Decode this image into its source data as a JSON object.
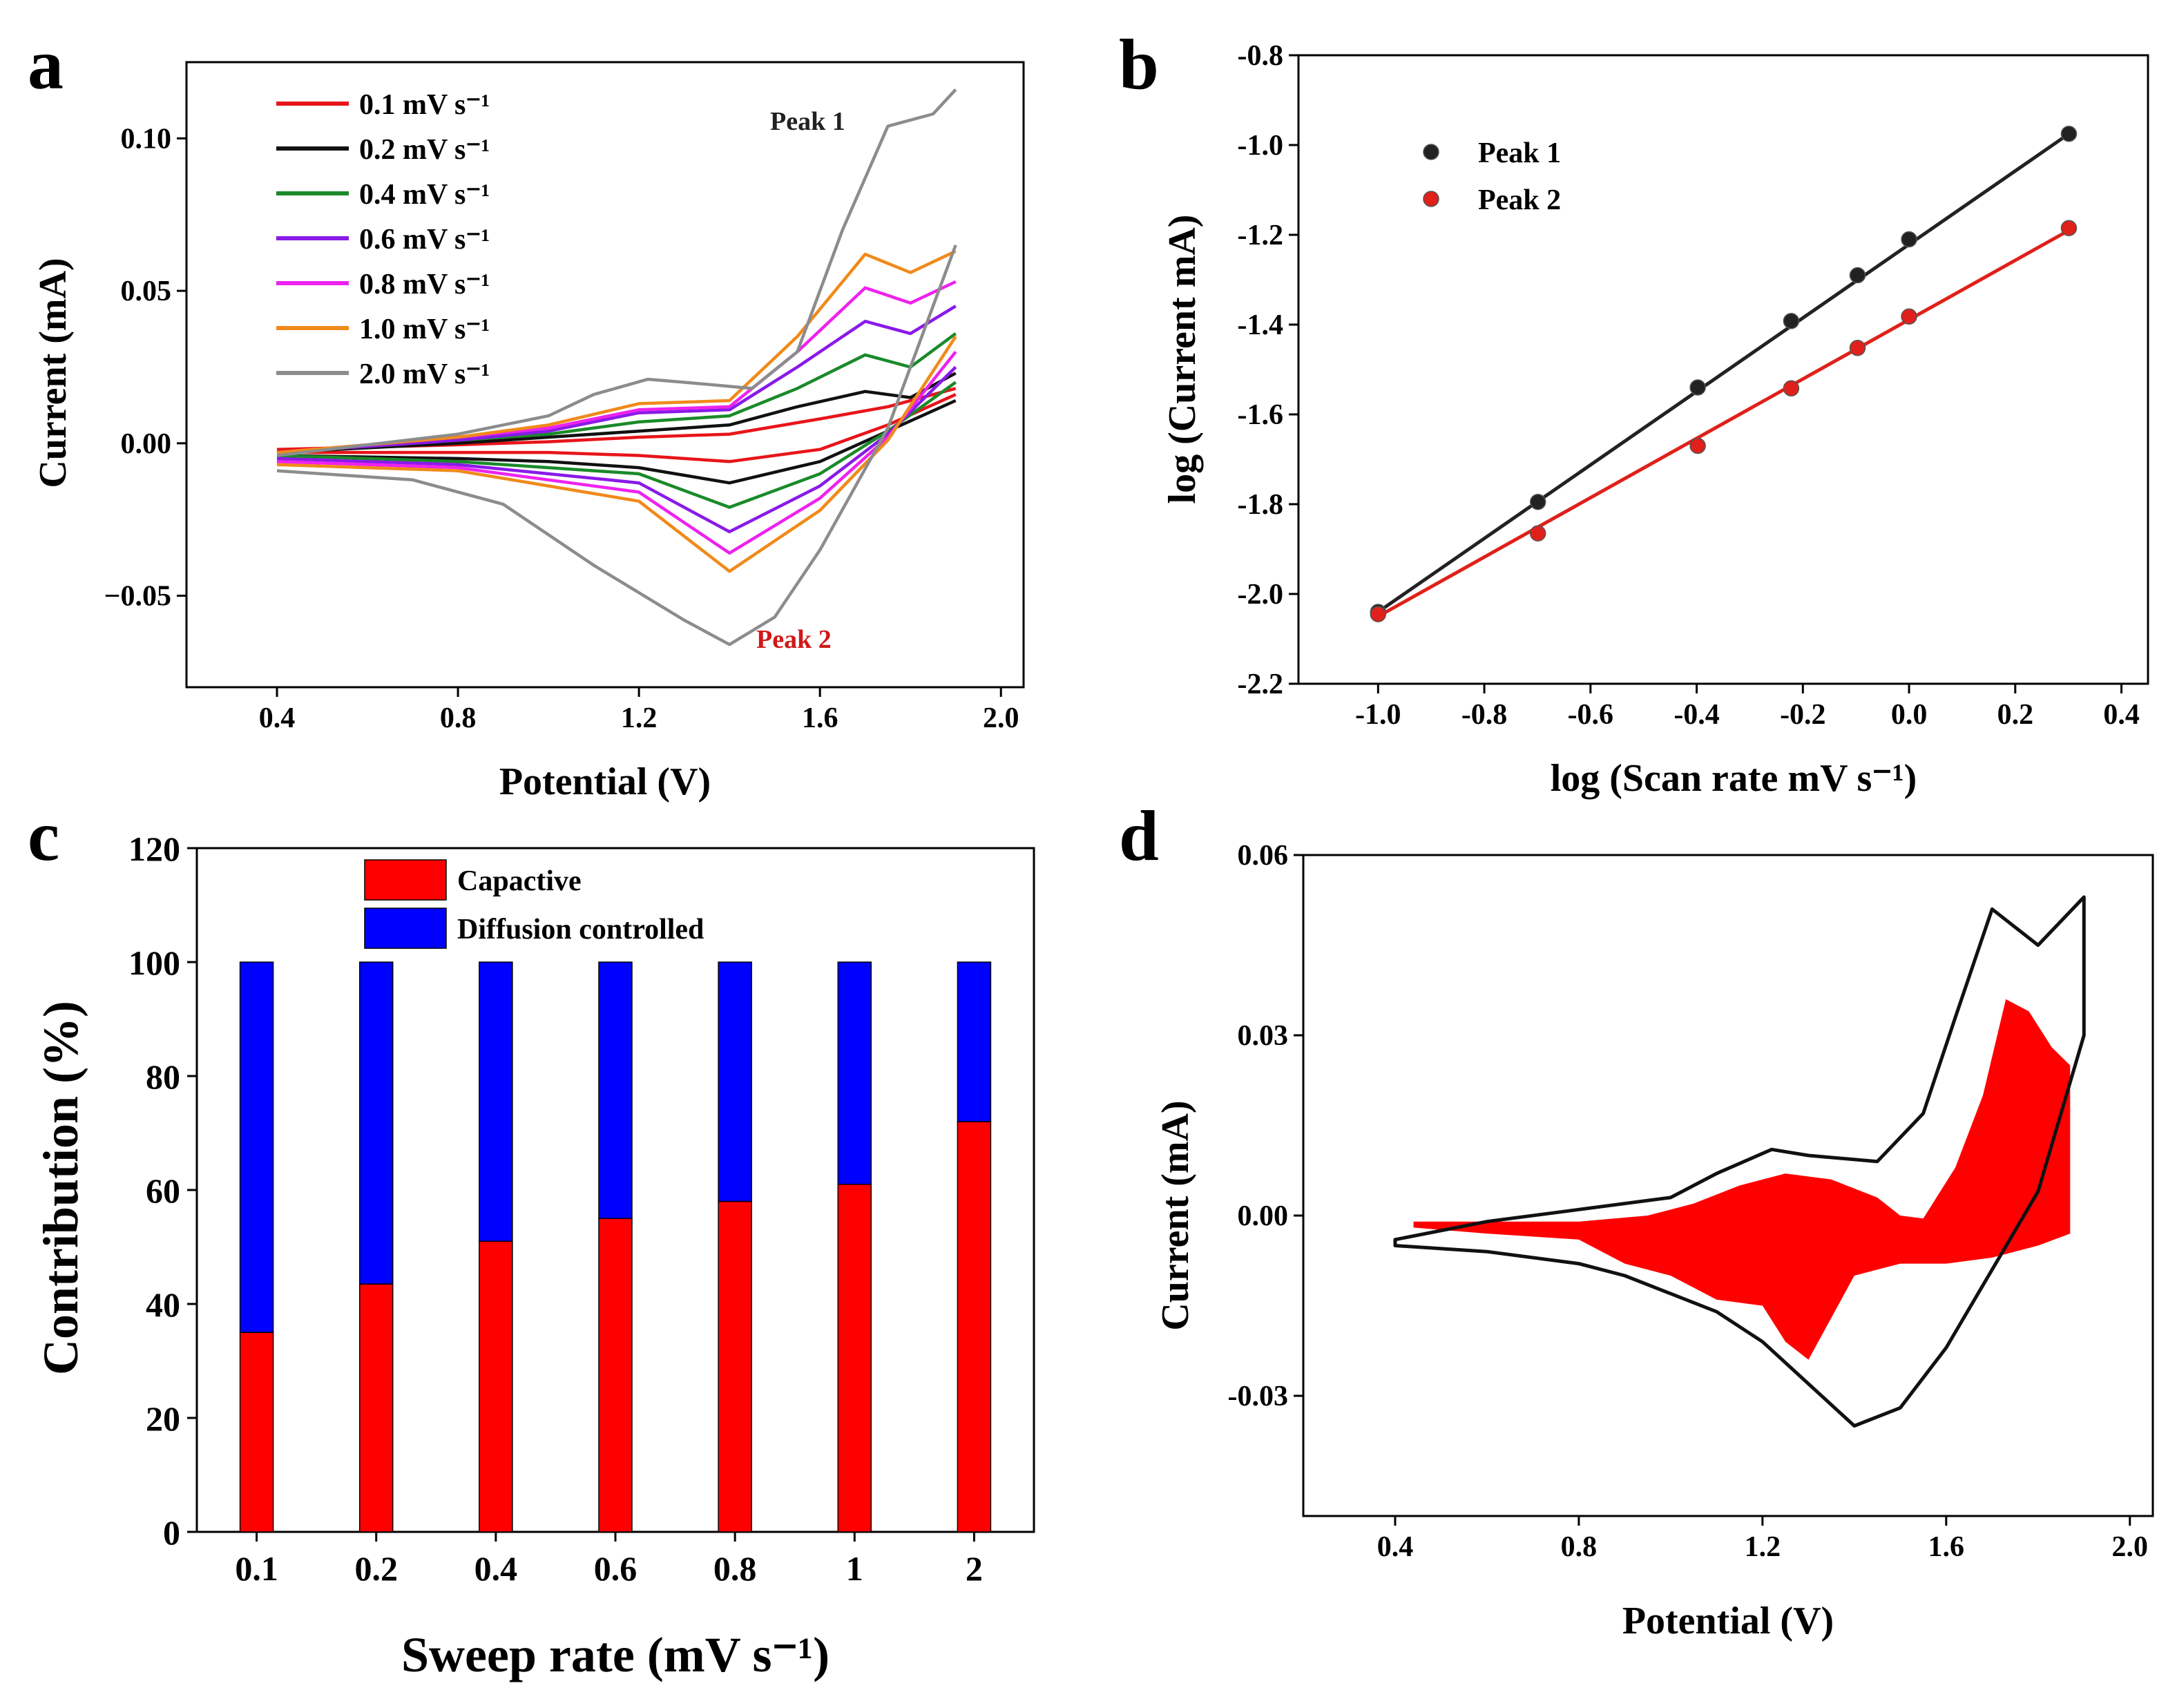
{
  "chart_data": [
    {
      "panel": "a",
      "type": "line",
      "xlabel": "Potential (V)",
      "ylabel": "Current (mA)",
      "xlim": [
        0.2,
        2.05
      ],
      "ylim": [
        -0.08,
        0.125
      ],
      "xticks": [
        "0.4",
        "0.8",
        "1.2",
        "1.6",
        "2.0"
      ],
      "yticks": [
        "−0.05",
        "0.00",
        "0.05",
        "0.10"
      ],
      "series": [
        {
          "name": "0.1 mV s⁻¹",
          "color": "#e8141a",
          "anodic": [
            [
              0.4,
              -0.002
            ],
            [
              0.8,
              -0.0005
            ],
            [
              1.0,
              0.0005
            ],
            [
              1.2,
              0.002
            ],
            [
              1.4,
              0.003
            ],
            [
              1.6,
              0.008
            ],
            [
              1.75,
              0.012
            ],
            [
              1.9,
              0.018
            ]
          ],
          "cathodic": [
            [
              1.9,
              0.016
            ],
            [
              1.75,
              0.006
            ],
            [
              1.6,
              -0.002
            ],
            [
              1.4,
              -0.006
            ],
            [
              1.2,
              -0.004
            ],
            [
              1.0,
              -0.003
            ],
            [
              0.8,
              -0.003
            ],
            [
              0.4,
              -0.003
            ]
          ]
        },
        {
          "name": "0.2 mV s⁻¹",
          "color": "#111111",
          "anodic": [
            [
              0.4,
              -0.003
            ],
            [
              0.8,
              0.0
            ],
            [
              1.0,
              0.002
            ],
            [
              1.2,
              0.004
            ],
            [
              1.4,
              0.006
            ],
            [
              1.55,
              0.012
            ],
            [
              1.7,
              0.017
            ],
            [
              1.8,
              0.015
            ],
            [
              1.9,
              0.023
            ]
          ],
          "cathodic": [
            [
              1.9,
              0.014
            ],
            [
              1.75,
              0.004
            ],
            [
              1.6,
              -0.006
            ],
            [
              1.4,
              -0.013
            ],
            [
              1.2,
              -0.008
            ],
            [
              1.0,
              -0.006
            ],
            [
              0.8,
              -0.005
            ],
            [
              0.4,
              -0.004
            ]
          ]
        },
        {
          "name": "0.4 mV s⁻¹",
          "color": "#1a8a2a",
          "anodic": [
            [
              0.4,
              -0.003
            ],
            [
              0.8,
              0.001
            ],
            [
              1.0,
              0.003
            ],
            [
              1.2,
              0.007
            ],
            [
              1.4,
              0.009
            ],
            [
              1.55,
              0.018
            ],
            [
              1.7,
              0.029
            ],
            [
              1.8,
              0.025
            ],
            [
              1.9,
              0.036
            ]
          ],
          "cathodic": [
            [
              1.9,
              0.02
            ],
            [
              1.75,
              0.004
            ],
            [
              1.6,
              -0.01
            ],
            [
              1.4,
              -0.021
            ],
            [
              1.2,
              -0.01
            ],
            [
              1.0,
              -0.008
            ],
            [
              0.8,
              -0.006
            ],
            [
              0.4,
              -0.004
            ]
          ]
        },
        {
          "name": "0.6 mV s⁻¹",
          "color": "#8a1ae8",
          "anodic": [
            [
              0.4,
              -0.003
            ],
            [
              0.8,
              0.001
            ],
            [
              1.0,
              0.004
            ],
            [
              1.2,
              0.01
            ],
            [
              1.4,
              0.011
            ],
            [
              1.55,
              0.025
            ],
            [
              1.7,
              0.04
            ],
            [
              1.8,
              0.036
            ],
            [
              1.9,
              0.045
            ]
          ],
          "cathodic": [
            [
              1.9,
              0.025
            ],
            [
              1.75,
              0.003
            ],
            [
              1.6,
              -0.014
            ],
            [
              1.4,
              -0.029
            ],
            [
              1.2,
              -0.013
            ],
            [
              1.0,
              -0.01
            ],
            [
              0.8,
              -0.007
            ],
            [
              0.4,
              -0.005
            ]
          ]
        },
        {
          "name": "0.8 mV s⁻¹",
          "color": "#ee22ee",
          "anodic": [
            [
              0.4,
              -0.003
            ],
            [
              0.8,
              0.002
            ],
            [
              1.0,
              0.005
            ],
            [
              1.2,
              0.011
            ],
            [
              1.4,
              0.012
            ],
            [
              1.55,
              0.03
            ],
            [
              1.7,
              0.051
            ],
            [
              1.8,
              0.046
            ],
            [
              1.9,
              0.053
            ]
          ],
          "cathodic": [
            [
              1.9,
              0.03
            ],
            [
              1.75,
              0.002
            ],
            [
              1.6,
              -0.018
            ],
            [
              1.4,
              -0.036
            ],
            [
              1.2,
              -0.016
            ],
            [
              1.0,
              -0.012
            ],
            [
              0.8,
              -0.008
            ],
            [
              0.4,
              -0.006
            ]
          ]
        },
        {
          "name": "1.0 mV s⁻¹",
          "color": "#f08a1a",
          "anodic": [
            [
              0.4,
              -0.003
            ],
            [
              0.8,
              0.002
            ],
            [
              1.0,
              0.006
            ],
            [
              1.2,
              0.013
            ],
            [
              1.4,
              0.014
            ],
            [
              1.55,
              0.035
            ],
            [
              1.7,
              0.062
            ],
            [
              1.8,
              0.056
            ],
            [
              1.9,
              0.063
            ]
          ],
          "cathodic": [
            [
              1.9,
              0.035
            ],
            [
              1.75,
              0.001
            ],
            [
              1.6,
              -0.022
            ],
            [
              1.4,
              -0.042
            ],
            [
              1.2,
              -0.019
            ],
            [
              1.0,
              -0.014
            ],
            [
              0.8,
              -0.009
            ],
            [
              0.4,
              -0.007
            ]
          ]
        },
        {
          "name": "2.0 mV s⁻¹",
          "color": "#8c8c8c",
          "anodic": [
            [
              0.4,
              -0.004
            ],
            [
              0.8,
              0.003
            ],
            [
              1.0,
              0.009
            ],
            [
              1.1,
              0.016
            ],
            [
              1.22,
              0.021
            ],
            [
              1.3,
              0.02
            ],
            [
              1.45,
              0.018
            ],
            [
              1.55,
              0.03
            ],
            [
              1.65,
              0.07
            ],
            [
              1.75,
              0.104
            ],
            [
              1.85,
              0.108
            ],
            [
              1.9,
              0.116
            ]
          ],
          "cathodic": [
            [
              1.9,
              0.065
            ],
            [
              1.8,
              0.025
            ],
            [
              1.75,
              0.005
            ],
            [
              1.6,
              -0.035
            ],
            [
              1.5,
              -0.057
            ],
            [
              1.4,
              -0.066
            ],
            [
              1.3,
              -0.058
            ],
            [
              1.1,
              -0.04
            ],
            [
              1.0,
              -0.03
            ],
            [
              0.9,
              -0.02
            ],
            [
              0.7,
              -0.012
            ],
            [
              0.4,
              -0.009
            ]
          ]
        }
      ],
      "annotations": [
        "Peak 1",
        "Peak 2"
      ]
    },
    {
      "panel": "b",
      "type": "scatter",
      "xlabel": "log (Scan rate mV s⁻¹)",
      "ylabel": "log (Current mA)",
      "xlim": [
        -1.15,
        0.45
      ],
      "ylim": [
        -2.2,
        -0.8
      ],
      "xticks": [
        "-1.0",
        "-0.8",
        "-0.6",
        "-0.4",
        "-0.2",
        "0.0",
        "0.2",
        "0.4"
      ],
      "yticks": [
        "-2.2",
        "-2.0",
        "-1.8",
        "-1.6",
        "-1.4",
        "-1.2",
        "-1.0",
        "-0.8"
      ],
      "x": [
        -1.0,
        -0.699,
        -0.398,
        -0.222,
        -0.097,
        0.0,
        0.301
      ],
      "series": [
        {
          "name": "Peak 1",
          "color": "#222222",
          "values": [
            -2.04,
            -1.795,
            -1.54,
            -1.392,
            -1.29,
            -1.21,
            -0.975
          ],
          "fit": [
            [
              -1.0,
              -2.04
            ],
            [
              0.301,
              -0.975
            ]
          ]
        },
        {
          "name": "Peak 2",
          "color": "#e0201a",
          "values": [
            -2.045,
            -1.865,
            -1.67,
            -1.542,
            -1.452,
            -1.382,
            -1.185
          ],
          "fit": [
            [
              -1.0,
              -2.05
            ],
            [
              0.301,
              -1.19
            ]
          ]
        }
      ]
    },
    {
      "panel": "c",
      "type": "bar",
      "xlabel": "Sweep rate (mV s⁻¹)",
      "ylabel": "Contribution (%)",
      "ylim": [
        0,
        120
      ],
      "yticks": [
        "0",
        "20",
        "40",
        "60",
        "80",
        "100",
        "120"
      ],
      "categories": [
        "0.1",
        "0.2",
        "0.4",
        "0.6",
        "0.8",
        "1",
        "2"
      ],
      "series": [
        {
          "name": "Capactive",
          "color": "#ff0000",
          "values": [
            35,
            43.5,
            51,
            55,
            58,
            61,
            72
          ]
        },
        {
          "name": "Diffusion controlled",
          "color": "#0000ff",
          "values": [
            65,
            56.5,
            49,
            45,
            42,
            39,
            28
          ]
        }
      ]
    },
    {
      "panel": "d",
      "type": "area",
      "xlabel": "Potential (V)",
      "ylabel": "Current (mA)",
      "xlim": [
        0.2,
        2.05
      ],
      "ylim": [
        -0.05,
        0.06
      ],
      "xticks": [
        "0.4",
        "0.8",
        "1.2",
        "1.6",
        "2.0"
      ],
      "yticks": [
        "-0.03",
        "0.00",
        "0.03",
        "0.06"
      ],
      "total_cv": {
        "anodic": [
          [
            0.4,
            -0.004
          ],
          [
            0.6,
            -0.001
          ],
          [
            0.8,
            0.001
          ],
          [
            1.0,
            0.003
          ],
          [
            1.1,
            0.007
          ],
          [
            1.22,
            0.011
          ],
          [
            1.3,
            0.01
          ],
          [
            1.45,
            0.009
          ],
          [
            1.55,
            0.017
          ],
          [
            1.62,
            0.033
          ],
          [
            1.7,
            0.051
          ],
          [
            1.8,
            0.045
          ],
          [
            1.9,
            0.053
          ]
        ],
        "cathodic": [
          [
            1.9,
            0.03
          ],
          [
            1.8,
            0.004
          ],
          [
            1.7,
            -0.009
          ],
          [
            1.6,
            -0.022
          ],
          [
            1.5,
            -0.032
          ],
          [
            1.4,
            -0.035
          ],
          [
            1.3,
            -0.028
          ],
          [
            1.2,
            -0.021
          ],
          [
            1.1,
            -0.016
          ],
          [
            1.0,
            -0.013
          ],
          [
            0.9,
            -0.01
          ],
          [
            0.8,
            -0.008
          ],
          [
            0.6,
            -0.006
          ],
          [
            0.4,
            -0.005
          ]
        ]
      },
      "capacitive_region": {
        "upper": [
          [
            0.44,
            -0.001
          ],
          [
            0.6,
            -0.001
          ],
          [
            0.8,
            -0.001
          ],
          [
            0.95,
            0.0
          ],
          [
            1.05,
            0.002
          ],
          [
            1.15,
            0.005
          ],
          [
            1.25,
            0.007
          ],
          [
            1.35,
            0.006
          ],
          [
            1.45,
            0.003
          ],
          [
            1.5,
            0.0
          ],
          [
            1.55,
            -0.0005
          ],
          [
            1.62,
            0.008
          ],
          [
            1.68,
            0.02
          ],
          [
            1.73,
            0.036
          ],
          [
            1.78,
            0.034
          ],
          [
            1.83,
            0.028
          ],
          [
            1.87,
            0.025
          ]
        ],
        "lower": [
          [
            1.87,
            -0.003
          ],
          [
            1.8,
            -0.005
          ],
          [
            1.7,
            -0.007
          ],
          [
            1.6,
            -0.008
          ],
          [
            1.5,
            -0.008
          ],
          [
            1.45,
            -0.009
          ],
          [
            1.4,
            -0.01
          ],
          [
            1.35,
            -0.017
          ],
          [
            1.3,
            -0.024
          ],
          [
            1.25,
            -0.021
          ],
          [
            1.2,
            -0.015
          ],
          [
            1.1,
            -0.014
          ],
          [
            1.0,
            -0.01
          ],
          [
            0.9,
            -0.008
          ],
          [
            0.8,
            -0.004
          ],
          [
            0.6,
            -0.003
          ],
          [
            0.44,
            -0.002
          ]
        ],
        "color": "#ff0000"
      }
    }
  ],
  "panels": {
    "a": "a",
    "b": "b",
    "c": "c",
    "d": "d"
  }
}
